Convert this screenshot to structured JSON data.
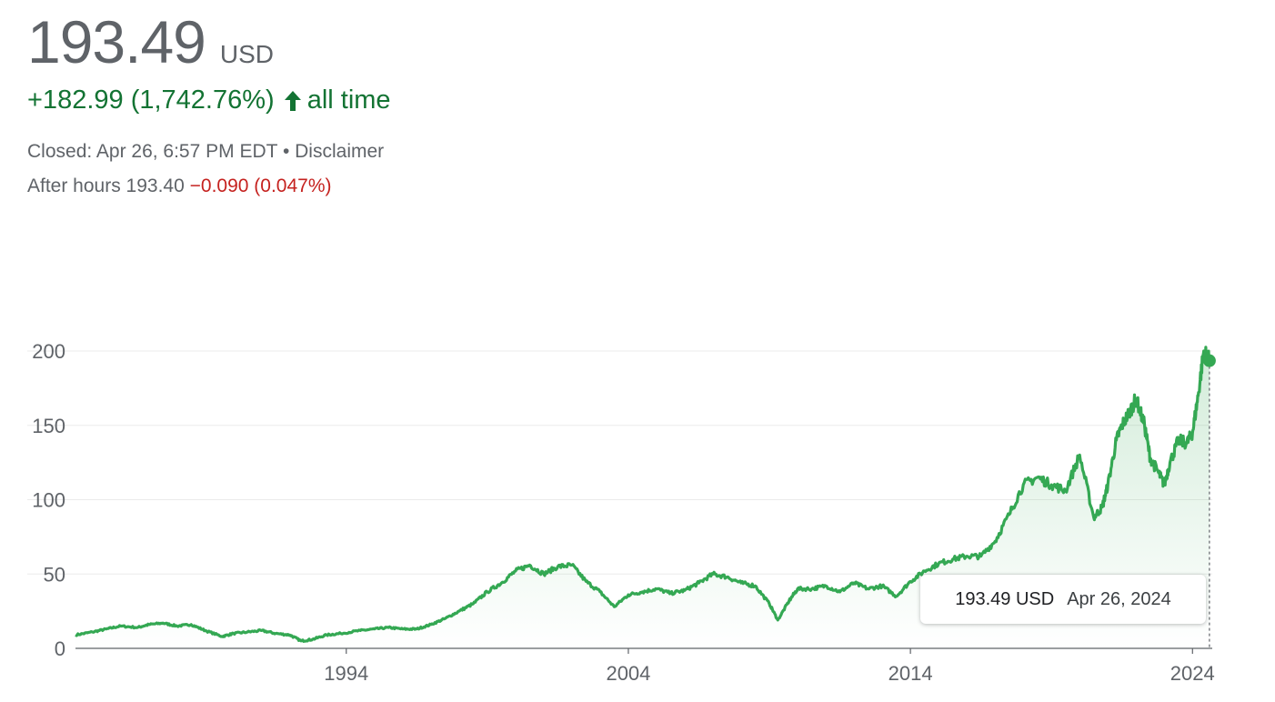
{
  "quote": {
    "price": "193.49",
    "currency": "USD",
    "change": "+182.99 (1,742.76%)",
    "change_period": "all time",
    "closed_prefix": "Closed: Apr 26, 6:57 PM EDT",
    "separator": "•",
    "disclaimer": "Disclaimer",
    "after_hours_label": "After hours 193.40",
    "after_hours_change": "−0.090 (0.047%)"
  },
  "colors": {
    "line": "#34a853",
    "up": "#137333",
    "down": "#c5221f",
    "grid": "#ebebeb"
  },
  "tooltip": {
    "value": "193.49 USD",
    "date": "Apr 26, 2024"
  },
  "chart_data": {
    "type": "area",
    "y_ticks": [
      0,
      50,
      100,
      150,
      200
    ],
    "y_tick_labels": [
      "0",
      "50",
      "100",
      "150",
      "200"
    ],
    "x_ticks": [
      1994,
      2004,
      2014,
      2024
    ],
    "x_tick_labels": [
      "1994",
      "2004",
      "2014",
      "2024"
    ],
    "xlim": [
      1984.4,
      2024.7
    ],
    "ylim": [
      0,
      200
    ],
    "grid": true,
    "x": [
      1984.4,
      1985.0,
      1985.5,
      1986.0,
      1986.6,
      1987.0,
      1987.5,
      1988.0,
      1988.5,
      1989.0,
      1989.6,
      1990.0,
      1990.5,
      1991.0,
      1991.5,
      1992.0,
      1992.4,
      1992.8,
      1993.3,
      1993.8,
      1994.5,
      1995.0,
      1995.5,
      1996.0,
      1996.5,
      1997.0,
      1997.5,
      1998.0,
      1998.5,
      1999.0,
      1999.5,
      2000.0,
      2000.5,
      2001.0,
      2001.5,
      2002.0,
      2002.5,
      2003.0,
      2003.5,
      2004.0,
      2004.5,
      2005.0,
      2005.5,
      2006.0,
      2006.5,
      2007.0,
      2007.5,
      2008.0,
      2008.5,
      2009.0,
      2009.3,
      2009.7,
      2010.0,
      2010.5,
      2011.0,
      2011.5,
      2012.0,
      2012.5,
      2013.0,
      2013.5,
      2014.0,
      2014.5,
      2015.0,
      2015.5,
      2016.0,
      2016.5,
      2017.0,
      2017.5,
      2018.0,
      2018.5,
      2019.0,
      2019.5,
      2020.0,
      2020.5,
      2020.8,
      2021.0,
      2021.3,
      2021.5,
      2021.8,
      2022.0,
      2022.3,
      2022.5,
      2022.8,
      2023.0,
      2023.2,
      2023.5,
      2023.8,
      2024.0,
      2024.2,
      2024.4,
      2024.6
    ],
    "values": [
      9,
      11,
      13,
      15,
      14,
      16,
      17,
      15,
      16,
      12,
      8,
      10,
      11,
      12,
      10,
      9,
      5,
      6,
      9,
      10,
      12,
      13,
      14,
      13,
      13,
      16,
      20,
      25,
      30,
      38,
      44,
      52,
      56,
      50,
      55,
      56,
      45,
      38,
      28,
      36,
      38,
      40,
      37,
      39,
      44,
      50,
      48,
      44,
      42,
      30,
      19,
      32,
      40,
      40,
      42,
      38,
      44,
      40,
      42,
      35,
      45,
      52,
      57,
      60,
      62,
      62,
      72,
      90,
      110,
      115,
      110,
      106,
      130,
      88,
      95,
      110,
      140,
      150,
      160,
      168,
      150,
      128,
      118,
      110,
      125,
      140,
      138,
      145,
      170,
      200,
      193.49
    ]
  }
}
